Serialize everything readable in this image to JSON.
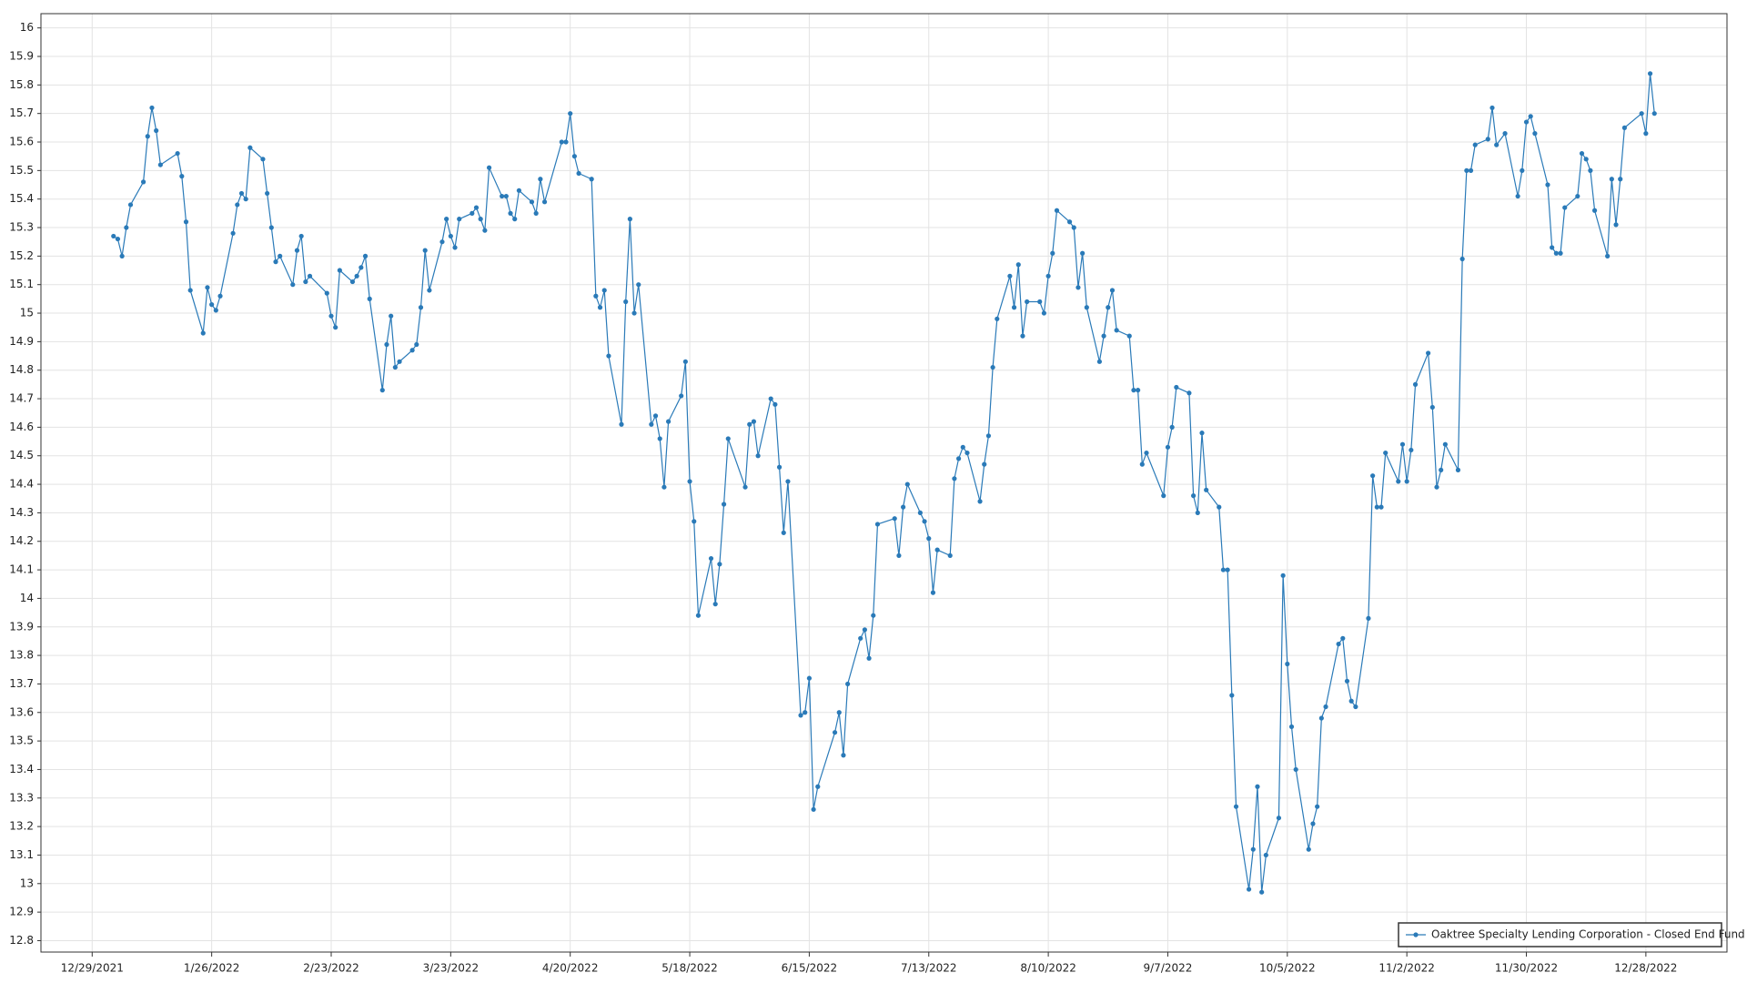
{
  "chart_data": {
    "type": "line",
    "x": [
      "1/3/2022",
      "1/4/2022",
      "1/5/2022",
      "1/6/2022",
      "1/7/2022",
      "1/10/2022",
      "1/11/2022",
      "1/12/2022",
      "1/13/2022",
      "1/14/2022",
      "1/18/2022",
      "1/19/2022",
      "1/20/2022",
      "1/21/2022",
      "1/24/2022",
      "1/25/2022",
      "1/26/2022",
      "1/27/2022",
      "1/28/2022",
      "1/31/2022",
      "2/1/2022",
      "2/2/2022",
      "2/3/2022",
      "2/4/2022",
      "2/7/2022",
      "2/8/2022",
      "2/9/2022",
      "2/10/2022",
      "2/11/2022",
      "2/14/2022",
      "2/15/2022",
      "2/16/2022",
      "2/17/2022",
      "2/18/2022",
      "2/22/2022",
      "2/23/2022",
      "2/24/2022",
      "2/25/2022",
      "2/28/2022",
      "3/1/2022",
      "3/2/2022",
      "3/3/2022",
      "3/4/2022",
      "3/7/2022",
      "3/8/2022",
      "3/9/2022",
      "3/10/2022",
      "3/11/2022",
      "3/14/2022",
      "3/15/2022",
      "3/16/2022",
      "3/17/2022",
      "3/18/2022",
      "3/21/2022",
      "3/22/2022",
      "3/23/2022",
      "3/24/2022",
      "3/25/2022",
      "3/28/2022",
      "3/29/2022",
      "3/30/2022",
      "3/31/2022",
      "4/1/2022",
      "4/4/2022",
      "4/5/2022",
      "4/6/2022",
      "4/7/2022",
      "4/8/2022",
      "4/11/2022",
      "4/12/2022",
      "4/13/2022",
      "4/14/2022",
      "4/18/2022",
      "4/19/2022",
      "4/20/2022",
      "4/21/2022",
      "4/22/2022",
      "4/25/2022",
      "4/26/2022",
      "4/27/2022",
      "4/28/2022",
      "4/29/2022",
      "5/2/2022",
      "5/3/2022",
      "5/4/2022",
      "5/5/2022",
      "5/6/2022",
      "5/9/2022",
      "5/10/2022",
      "5/11/2022",
      "5/12/2022",
      "5/13/2022",
      "5/16/2022",
      "5/17/2022",
      "5/18/2022",
      "5/19/2022",
      "5/20/2022",
      "5/23/2022",
      "5/24/2022",
      "5/25/2022",
      "5/26/2022",
      "5/27/2022",
      "5/31/2022",
      "6/1/2022",
      "6/2/2022",
      "6/3/2022",
      "6/6/2022",
      "6/7/2022",
      "6/8/2022",
      "6/9/2022",
      "6/10/2022",
      "6/13/2022",
      "6/14/2022",
      "6/15/2022",
      "6/16/2022",
      "6/17/2022",
      "6/21/2022",
      "6/22/2022",
      "6/23/2022",
      "6/24/2022",
      "6/27/2022",
      "6/28/2022",
      "6/29/2022",
      "6/30/2022",
      "7/1/2022",
      "7/5/2022",
      "7/6/2022",
      "7/7/2022",
      "7/8/2022",
      "7/11/2022",
      "7/12/2022",
      "7/13/2022",
      "7/14/2022",
      "7/15/2022",
      "7/18/2022",
      "7/19/2022",
      "7/20/2022",
      "7/21/2022",
      "7/22/2022",
      "7/25/2022",
      "7/26/2022",
      "7/27/2022",
      "7/28/2022",
      "7/29/2022",
      "8/1/2022",
      "8/2/2022",
      "8/3/2022",
      "8/4/2022",
      "8/5/2022",
      "8/8/2022",
      "8/9/2022",
      "8/10/2022",
      "8/11/2022",
      "8/12/2022",
      "8/15/2022",
      "8/16/2022",
      "8/17/2022",
      "8/18/2022",
      "8/19/2022",
      "8/22/2022",
      "8/23/2022",
      "8/24/2022",
      "8/25/2022",
      "8/26/2022",
      "8/29/2022",
      "8/30/2022",
      "8/31/2022",
      "9/1/2022",
      "9/2/2022",
      "9/6/2022",
      "9/7/2022",
      "9/8/2022",
      "9/9/2022",
      "9/12/2022",
      "9/13/2022",
      "9/14/2022",
      "9/15/2022",
      "9/16/2022",
      "9/19/2022",
      "9/20/2022",
      "9/21/2022",
      "9/22/2022",
      "9/23/2022",
      "9/26/2022",
      "9/27/2022",
      "9/28/2022",
      "9/29/2022",
      "9/30/2022",
      "10/3/2022",
      "10/4/2022",
      "10/5/2022",
      "10/6/2022",
      "10/7/2022",
      "10/10/2022",
      "10/11/2022",
      "10/12/2022",
      "10/13/2022",
      "10/14/2022",
      "10/17/2022",
      "10/18/2022",
      "10/19/2022",
      "10/20/2022",
      "10/21/2022",
      "10/24/2022",
      "10/25/2022",
      "10/26/2022",
      "10/27/2022",
      "10/28/2022",
      "10/31/2022",
      "11/1/2022",
      "11/2/2022",
      "11/3/2022",
      "11/4/2022",
      "11/7/2022",
      "11/8/2022",
      "11/9/2022",
      "11/10/2022",
      "11/11/2022",
      "11/14/2022",
      "11/15/2022",
      "11/16/2022",
      "11/17/2022",
      "11/18/2022",
      "11/21/2022",
      "11/22/2022",
      "11/23/2022",
      "11/25/2022",
      "11/28/2022",
      "11/29/2022",
      "11/30/2022",
      "12/1/2022",
      "12/2/2022",
      "12/5/2022",
      "12/6/2022",
      "12/7/2022",
      "12/8/2022",
      "12/9/2022",
      "12/12/2022",
      "12/13/2022",
      "12/14/2022",
      "12/15/2022",
      "12/16/2022",
      "12/19/2022",
      "12/20/2022",
      "12/21/2022",
      "12/22/2022",
      "12/23/2022",
      "12/27/2022",
      "12/28/2022",
      "12/29/2022",
      "12/30/2022"
    ],
    "series": [
      {
        "name": "Oaktree Specialty Lending Corporation - Closed End Fund",
        "color": "#2a7ab8",
        "values": [
          15.27,
          15.26,
          15.2,
          15.3,
          15.38,
          15.46,
          15.62,
          15.72,
          15.64,
          15.52,
          15.56,
          15.48,
          15.32,
          15.08,
          14.93,
          15.09,
          15.03,
          15.01,
          15.06,
          15.28,
          15.38,
          15.42,
          15.4,
          15.58,
          15.54,
          15.42,
          15.3,
          15.18,
          15.2,
          15.1,
          15.22,
          15.27,
          15.11,
          15.13,
          15.07,
          14.99,
          14.95,
          15.15,
          15.11,
          15.13,
          15.16,
          15.2,
          15.05,
          14.73,
          14.89,
          14.99,
          14.81,
          14.83,
          14.87,
          14.89,
          15.02,
          15.22,
          15.08,
          15.25,
          15.33,
          15.27,
          15.23,
          15.33,
          15.35,
          15.37,
          15.33,
          15.29,
          15.51,
          15.41,
          15.41,
          15.35,
          15.33,
          15.43,
          15.39,
          15.35,
          15.47,
          15.39,
          15.6,
          15.6,
          15.7,
          15.55,
          15.49,
          15.47,
          15.06,
          15.02,
          15.08,
          14.85,
          14.61,
          15.04,
          15.33,
          15.0,
          15.1,
          14.61,
          14.64,
          14.56,
          14.39,
          14.62,
          14.71,
          14.83,
          14.41,
          14.27,
          13.94,
          14.14,
          13.98,
          14.12,
          14.33,
          14.56,
          14.39,
          14.61,
          14.62,
          14.5,
          14.7,
          14.68,
          14.46,
          14.23,
          14.41,
          13.59,
          13.6,
          13.72,
          13.26,
          13.34,
          13.53,
          13.6,
          13.45,
          13.7,
          13.86,
          13.89,
          13.79,
          13.94,
          14.26,
          14.28,
          14.15,
          14.32,
          14.4,
          14.3,
          14.27,
          14.21,
          14.02,
          14.17,
          14.15,
          14.42,
          14.49,
          14.53,
          14.51,
          14.34,
          14.47,
          14.57,
          14.81,
          14.98,
          15.13,
          15.02,
          15.17,
          14.92,
          15.04,
          15.04,
          15.0,
          15.13,
          15.21,
          15.36,
          15.32,
          15.3,
          15.09,
          15.21,
          15.02,
          14.83,
          14.92,
          15.02,
          15.08,
          14.94,
          14.92,
          14.73,
          14.73,
          14.47,
          14.51,
          14.36,
          14.53,
          14.6,
          14.74,
          14.72,
          14.36,
          14.3,
          14.58,
          14.38,
          14.32,
          14.1,
          14.1,
          13.66,
          13.27,
          12.98,
          13.12,
          13.34,
          12.97,
          13.1,
          13.23,
          14.08,
          13.77,
          13.55,
          13.4,
          13.12,
          13.21,
          13.27,
          13.58,
          13.62,
          13.84,
          13.86,
          13.71,
          13.64,
          13.62,
          13.93,
          14.43,
          14.32,
          14.32,
          14.51,
          14.41,
          14.54,
          14.41,
          14.52,
          14.75,
          14.86,
          14.67,
          14.39,
          14.45,
          14.54,
          14.45,
          15.19,
          15.5,
          15.5,
          15.59,
          15.61,
          15.72,
          15.59,
          15.63,
          15.41,
          15.5,
          15.67,
          15.69,
          15.63,
          15.45,
          15.23,
          15.21,
          15.21,
          15.37,
          15.41,
          15.56,
          15.54,
          15.5,
          15.36,
          15.2,
          15.47,
          15.31,
          15.47,
          15.65,
          15.7,
          15.63,
          15.84,
          15.7
        ]
      }
    ],
    "xlim": [
      "12/17/2021",
      "1/16/2023"
    ],
    "xticks": [
      "12/29/2021",
      "1/26/2022",
      "2/23/2022",
      "3/23/2022",
      "4/20/2022",
      "5/18/2022",
      "6/15/2022",
      "7/13/2022",
      "8/10/2022",
      "9/7/2022",
      "10/5/2022",
      "11/2/2022",
      "11/30/2022",
      "12/28/2022"
    ],
    "ylim": [
      12.76,
      16.05
    ],
    "yticks": [
      12.8,
      12.9,
      13,
      13.1,
      13.2,
      13.3,
      13.4,
      13.5,
      13.6,
      13.7,
      13.8,
      13.9,
      14,
      14.1,
      14.2,
      14.3,
      14.4,
      14.5,
      14.6,
      14.7,
      14.8,
      14.9,
      15,
      15.1,
      15.2,
      15.3,
      15.4,
      15.5,
      15.6,
      15.7,
      15.8,
      15.9,
      16
    ],
    "grid": true,
    "legend": "lower right"
  }
}
